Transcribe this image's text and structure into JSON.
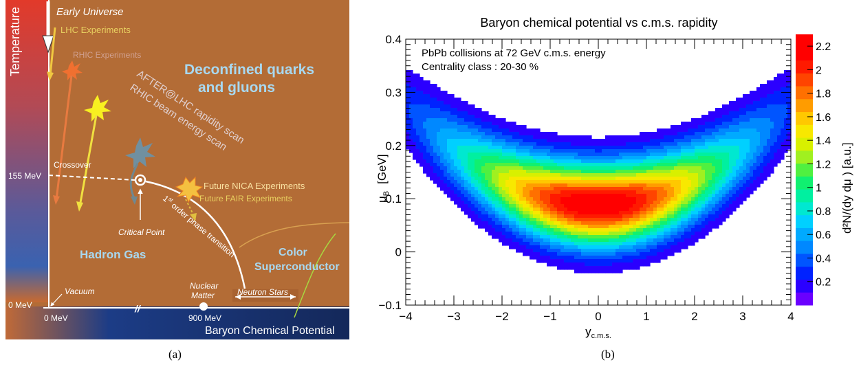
{
  "panel_a": {
    "sublabel": "(a)",
    "temperature_label": "Temperature",
    "early_universe": "Early Universe",
    "lhc": "LHC Experiments",
    "rhic": "RHIC Experiments",
    "after_lhc": "AFTER@LHC rapidity scan",
    "rhic_scan": "RHIC beam energy scan",
    "deconfined_1": "Deconfined quarks",
    "deconfined_2": "and gluons",
    "crossover": "Crossover",
    "t155": "155 MeV",
    "critical_point": "Critical Point",
    "phase_transition_1": "1",
    "phase_transition_sup": "st",
    "phase_transition_2": " order phase transition",
    "nica": "Future NICA Experiments",
    "fair": "Future FAIR Experiments",
    "hadron_gas": "Hadron Gas",
    "color_1": "Color",
    "color_2": "Superconductor",
    "vacuum": "Vacuum",
    "nuclear_1": "Nuclear",
    "nuclear_2": "Matter",
    "neutron_stars": "Neutron Stars",
    "t0": "0 MeV",
    "mu0": "0 MeV",
    "mu900": "900 MeV",
    "axis_break": "//",
    "baryon_cp": "Baryon Chemical Potential"
  },
  "panel_b": {
    "sublabel": "(b)"
  },
  "chart_data": {
    "type": "heatmap",
    "title": "Baryon chemical potential vs c.m.s. rapidity",
    "annotations": [
      "PbPb collisions at 72 GeV  c.m.s. energy",
      "Centrality class : 20-30 %"
    ],
    "xlabel": "y",
    "xlabel_sub": "c.m.s.",
    "ylabel": "μ",
    "ylabel_sub": "B",
    "ylabel_unit": "[GeV]",
    "zlabel": "d²N/(dy   dμ )  [a.u.]",
    "xlim": [
      -4,
      4
    ],
    "ylim": [
      -0.1,
      0.4
    ],
    "zlim": [
      0,
      2.3
    ],
    "x_ticks": [
      -4,
      -3,
      -2,
      -1,
      0,
      1,
      2,
      3,
      4
    ],
    "y_ticks": [
      -0.1,
      0,
      0.1,
      0.2,
      0.3,
      0.4
    ],
    "y_tick_labels": [
      "−0.1",
      "0",
      "0.1",
      "0.2",
      "0.3",
      "0.4"
    ],
    "x_tick_labels": [
      "−4",
      "−3",
      "−2",
      "−1",
      "0",
      "1",
      "2",
      "3",
      "4"
    ],
    "z_ticks": [
      0.2,
      0.4,
      0.6,
      0.8,
      1,
      1.2,
      1.4,
      1.6,
      1.8,
      2,
      2.2
    ],
    "z_tick_labels": [
      "0.2",
      "0.4",
      "0.6",
      "0.8",
      "1",
      "1.2",
      "1.4",
      "1.6",
      "1.8",
      "2",
      "2.2"
    ],
    "model": {
      "amplitude": 2.25,
      "mu0_center": 0.088,
      "mu0_curvature": 0.0115,
      "sigma_y": 2.0,
      "sigma_mu": 0.052
    },
    "palette": [
      "#6a00ff",
      "#2b00ff",
      "#0022ff",
      "#0055ff",
      "#0088ff",
      "#00aaff",
      "#00d0ff",
      "#00e8d0",
      "#00f0a0",
      "#10f070",
      "#50f040",
      "#a0f020",
      "#d8f000",
      "#f8e800",
      "#ffc800",
      "#ff9c00",
      "#ff7000",
      "#ff4400",
      "#ff1a00",
      "#ff0000",
      "#ff0000"
    ],
    "colors": {
      "background": "#ffffff",
      "outside": "#ffffff"
    }
  }
}
